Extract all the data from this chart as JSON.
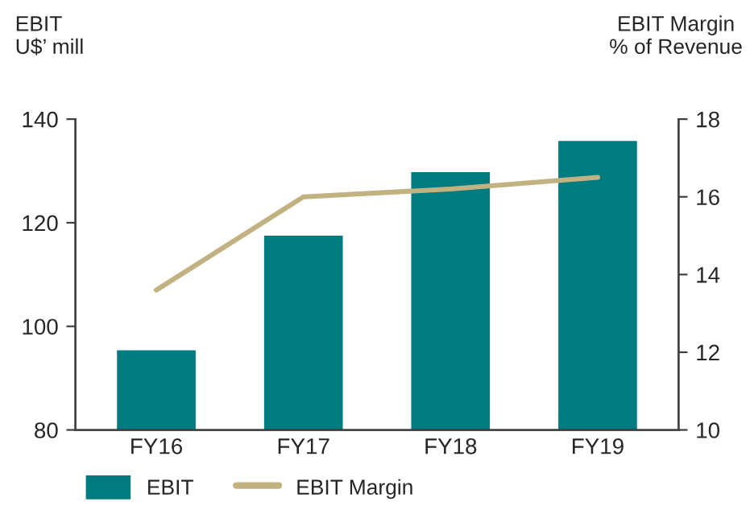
{
  "chart_data": {
    "type": "bar",
    "ylabel": "EBIT\nU$’ mill",
    "y2label": "EBIT Margin\n% of Revenue",
    "categories": [
      "FY16",
      "FY17",
      "FY18",
      "FY19"
    ],
    "series": [
      {
        "name": "EBIT",
        "type": "bar",
        "color": "#007b7f",
        "values": [
          95.6,
          117.7,
          130,
          136
        ]
      },
      {
        "name": "EBIT Margin",
        "type": "line",
        "axis": "y2",
        "color": "#c2b282",
        "values": [
          13.6,
          16.0,
          16.2,
          16.5
        ]
      }
    ],
    "ylim": [
      80,
      140
    ],
    "yticks": [
      80,
      100,
      120,
      140
    ],
    "y2lim": [
      10,
      18
    ],
    "y2ticks": [
      10,
      12,
      14,
      16,
      18
    ],
    "grid": false,
    "legend": "bottom left",
    "marker": "none",
    "line_style": "solid"
  }
}
